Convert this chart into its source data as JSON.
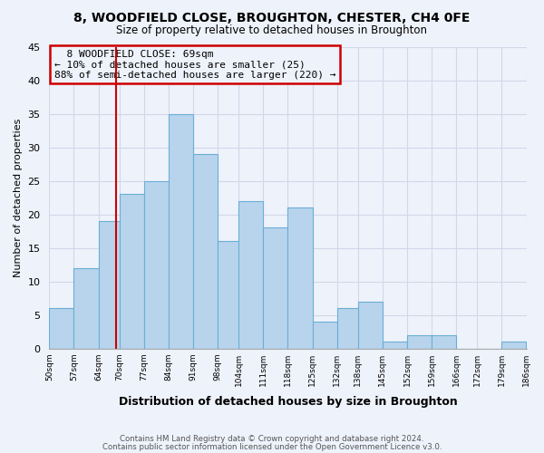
{
  "title": "8, WOODFIELD CLOSE, BROUGHTON, CHESTER, CH4 0FE",
  "subtitle": "Size of property relative to detached houses in Broughton",
  "xlabel": "Distribution of detached houses by size in Broughton",
  "ylabel": "Number of detached properties",
  "bar_color": "#b8d4ec",
  "bar_edge_color": "#6baed6",
  "background_color": "#eef2fb",
  "grid_color": "#d0d8e8",
  "bins_left": [
    50,
    57,
    64,
    70,
    77,
    84,
    91,
    98,
    104,
    111,
    118,
    125,
    132,
    138,
    145,
    152,
    159,
    166,
    172,
    179
  ],
  "bin_width": 7,
  "tick_labels": [
    "50sqm",
    "57sqm",
    "64sqm",
    "70sqm",
    "77sqm",
    "84sqm",
    "91sqm",
    "98sqm",
    "104sqm",
    "111sqm",
    "118sqm",
    "125sqm",
    "132sqm",
    "138sqm",
    "145sqm",
    "152sqm",
    "159sqm",
    "166sqm",
    "172sqm",
    "179sqm",
    "186sqm"
  ],
  "counts": [
    6,
    12,
    19,
    23,
    25,
    35,
    29,
    16,
    22,
    18,
    21,
    4,
    6,
    7,
    1,
    2,
    2,
    0,
    0,
    1
  ],
  "ylim": [
    0,
    45
  ],
  "yticks": [
    0,
    5,
    10,
    15,
    20,
    25,
    30,
    35,
    40,
    45
  ],
  "xlim_left": 50,
  "xlim_right": 186,
  "vline_x": 69,
  "vline_color": "#cc0000",
  "annotation_title": "8 WOODFIELD CLOSE: 69sqm",
  "annotation_line1": "← 10% of detached houses are smaller (25)",
  "annotation_line2": "88% of semi-detached houses are larger (220) →",
  "annotation_box_edge": "#cc0000",
  "footer_line1": "Contains HM Land Registry data © Crown copyright and database right 2024.",
  "footer_line2": "Contains public sector information licensed under the Open Government Licence v3.0."
}
